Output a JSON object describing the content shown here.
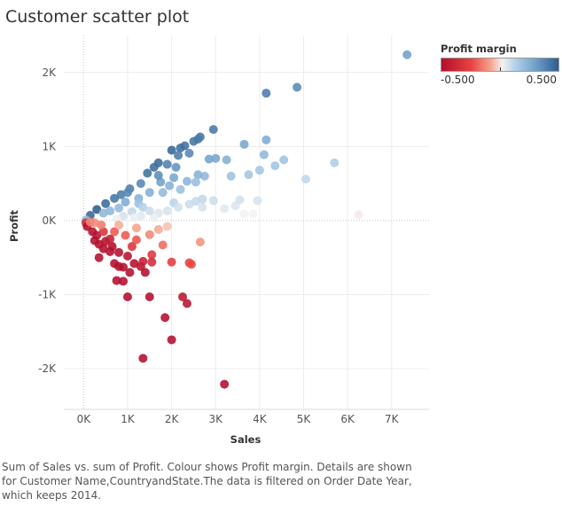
{
  "title": "Customer scatter plot",
  "legend": {
    "title": "Profit margin",
    "min_label": "-0.500",
    "max_label": "0.500",
    "colors": [
      "#b30e2e",
      "#e8413e",
      "#f7a38a",
      "#f2f2f2",
      "#a9cbe6",
      "#6a9bc6",
      "#2d5d8c"
    ]
  },
  "caption": "Sum of Sales vs. sum of Profit. Colour shows  Profit margin. Details are shown for Customer Name,CountryandState.The data is filtered on Order Date Year, which keeps 2014.",
  "chart_data": {
    "type": "scatter",
    "xlabel": "Sales",
    "ylabel": "Profit",
    "xlim": [
      -450,
      7850
    ],
    "ylim": [
      -2550,
      2500
    ],
    "x_ticks": [
      0,
      1000,
      2000,
      3000,
      4000,
      5000,
      6000,
      7000
    ],
    "x_tick_labels": [
      "0K",
      "1K",
      "2K",
      "3K",
      "4K",
      "5K",
      "6K",
      "7K"
    ],
    "y_ticks": [
      -2000,
      -1000,
      0,
      1000,
      2000
    ],
    "y_tick_labels": [
      "-2K",
      "-1K",
      "0K",
      "1K",
      "2K"
    ],
    "grid": true,
    "legend_position": "top-right",
    "points": [
      [
        7350,
        2240,
        0.3
      ],
      [
        4850,
        1800,
        0.37
      ],
      [
        4150,
        1720,
        0.41
      ],
      [
        2950,
        1230,
        0.42
      ],
      [
        2650,
        1130,
        0.43
      ],
      [
        2600,
        1100,
        0.42
      ],
      [
        2500,
        1070,
        0.43
      ],
      [
        4150,
        1090,
        0.26
      ],
      [
        3650,
        1030,
        0.28
      ],
      [
        2300,
        1010,
        0.44
      ],
      [
        2200,
        980,
        0.45
      ],
      [
        2000,
        950,
        0.47
      ],
      [
        1700,
        780,
        0.46
      ],
      [
        2400,
        910,
        0.38
      ],
      [
        2150,
        880,
        0.41
      ],
      [
        2850,
        830,
        0.29
      ],
      [
        3000,
        840,
        0.28
      ],
      [
        3250,
        820,
        0.25
      ],
      [
        4100,
        890,
        0.22
      ],
      [
        4550,
        820,
        0.18
      ],
      [
        5700,
        780,
        0.14
      ],
      [
        4350,
        740,
        0.17
      ],
      [
        4000,
        680,
        0.17
      ],
      [
        3750,
        620,
        0.17
      ],
      [
        3350,
        600,
        0.18
      ],
      [
        2750,
        600,
        0.22
      ],
      [
        2600,
        620,
        0.24
      ],
      [
        5050,
        560,
        0.11
      ],
      [
        2100,
        720,
        0.34
      ],
      [
        1900,
        760,
        0.4
      ],
      [
        1600,
        720,
        0.45
      ],
      [
        1450,
        640,
        0.44
      ],
      [
        2350,
        530,
        0.23
      ],
      [
        2550,
        520,
        0.2
      ],
      [
        3950,
        270,
        0.07
      ],
      [
        2950,
        270,
        0.09
      ],
      [
        3450,
        200,
        0.06
      ],
      [
        3200,
        160,
        0.05
      ],
      [
        2700,
        180,
        0.07
      ],
      [
        3850,
        90,
        0.02
      ],
      [
        3650,
        90,
        0.02
      ],
      [
        6250,
        80,
        0.01
      ],
      [
        2050,
        240,
        0.12
      ],
      [
        2400,
        220,
        0.09
      ],
      [
        2550,
        260,
        0.1
      ],
      [
        2150,
        180,
        0.08
      ],
      [
        1900,
        130,
        0.07
      ],
      [
        1700,
        100,
        0.06
      ],
      [
        1600,
        40,
        0.03
      ],
      [
        1300,
        60,
        0.05
      ],
      [
        1100,
        120,
        0.11
      ],
      [
        1950,
        470,
        0.24
      ],
      [
        1750,
        520,
        0.3
      ],
      [
        1500,
        380,
        0.25
      ],
      [
        1250,
        300,
        0.24
      ],
      [
        950,
        250,
        0.26
      ],
      [
        1300,
        500,
        0.38
      ],
      [
        1050,
        430,
        0.41
      ],
      [
        850,
        350,
        0.41
      ],
      [
        700,
        300,
        0.43
      ],
      [
        500,
        230,
        0.46
      ],
      [
        300,
        150,
        0.5
      ],
      [
        150,
        70,
        0.47
      ],
      [
        50,
        10,
        0.2
      ],
      [
        600,
        130,
        0.22
      ],
      [
        800,
        170,
        0.21
      ],
      [
        450,
        100,
        0.22
      ],
      [
        1000,
        380,
        0.38
      ],
      [
        1800,
        380,
        0.21
      ],
      [
        2200,
        420,
        0.19
      ],
      [
        2050,
        580,
        0.28
      ],
      [
        1700,
        610,
        0.36
      ],
      [
        1250,
        230,
        0.18
      ],
      [
        1350,
        180,
        0.13
      ],
      [
        1500,
        130,
        0.09
      ],
      [
        1150,
        40,
        0.03
      ],
      [
        900,
        60,
        0.07
      ],
      [
        750,
        20,
        0.03
      ],
      [
        2700,
        290,
        0.11
      ],
      [
        3550,
        280,
        0.08
      ],
      [
        50,
        -30,
        -0.35
      ],
      [
        80,
        -80,
        -0.5
      ],
      [
        200,
        -150,
        -0.5
      ],
      [
        300,
        -200,
        -0.48
      ],
      [
        350,
        -320,
        -0.5
      ],
      [
        250,
        -270,
        -0.5
      ],
      [
        450,
        -380,
        -0.5
      ],
      [
        600,
        -420,
        -0.5
      ],
      [
        700,
        -580,
        -0.5
      ],
      [
        800,
        -620,
        -0.5
      ],
      [
        900,
        -630,
        -0.5
      ],
      [
        1050,
        -700,
        -0.5
      ],
      [
        1400,
        -700,
        -0.5
      ],
      [
        1300,
        -620,
        -0.48
      ],
      [
        650,
        -350,
        -0.5
      ],
      [
        500,
        -280,
        -0.5
      ],
      [
        800,
        -430,
        -0.5
      ],
      [
        1000,
        -480,
        -0.48
      ],
      [
        1150,
        -580,
        -0.5
      ],
      [
        350,
        -500,
        -0.5
      ],
      [
        750,
        -810,
        -0.5
      ],
      [
        900,
        -820,
        -0.5
      ],
      [
        1000,
        -1030,
        -0.5
      ],
      [
        1500,
        -1030,
        -0.5
      ],
      [
        1350,
        -550,
        -0.42
      ],
      [
        1550,
        -460,
        -0.3
      ],
      [
        1800,
        -330,
        -0.18
      ],
      [
        1200,
        -260,
        -0.22
      ],
      [
        950,
        -200,
        -0.21
      ],
      [
        700,
        -150,
        -0.21
      ],
      [
        1500,
        -190,
        -0.13
      ],
      [
        1700,
        -120,
        -0.07
      ],
      [
        1900,
        -80,
        -0.04
      ],
      [
        2000,
        -560,
        -0.28
      ],
      [
        2400,
        -570,
        -0.24
      ],
      [
        2450,
        -590,
        -0.24
      ],
      [
        2650,
        -290,
        -0.11
      ],
      [
        2250,
        -1030,
        -0.46
      ],
      [
        2350,
        -1120,
        -0.48
      ],
      [
        1850,
        -1310,
        -0.5
      ],
      [
        2000,
        -1610,
        -0.5
      ],
      [
        1350,
        -1860,
        -0.5
      ],
      [
        3200,
        -2210,
        -0.5
      ],
      [
        1550,
        -560,
        -0.36
      ],
      [
        600,
        -250,
        -0.42
      ],
      [
        450,
        -150,
        -0.33
      ],
      [
        1100,
        -350,
        -0.32
      ],
      [
        400,
        -60,
        -0.15
      ],
      [
        250,
        -30,
        -0.12
      ],
      [
        150,
        -20,
        -0.13
      ],
      [
        1200,
        -100,
        -0.08
      ],
      [
        800,
        -60,
        -0.07
      ]
    ]
  }
}
